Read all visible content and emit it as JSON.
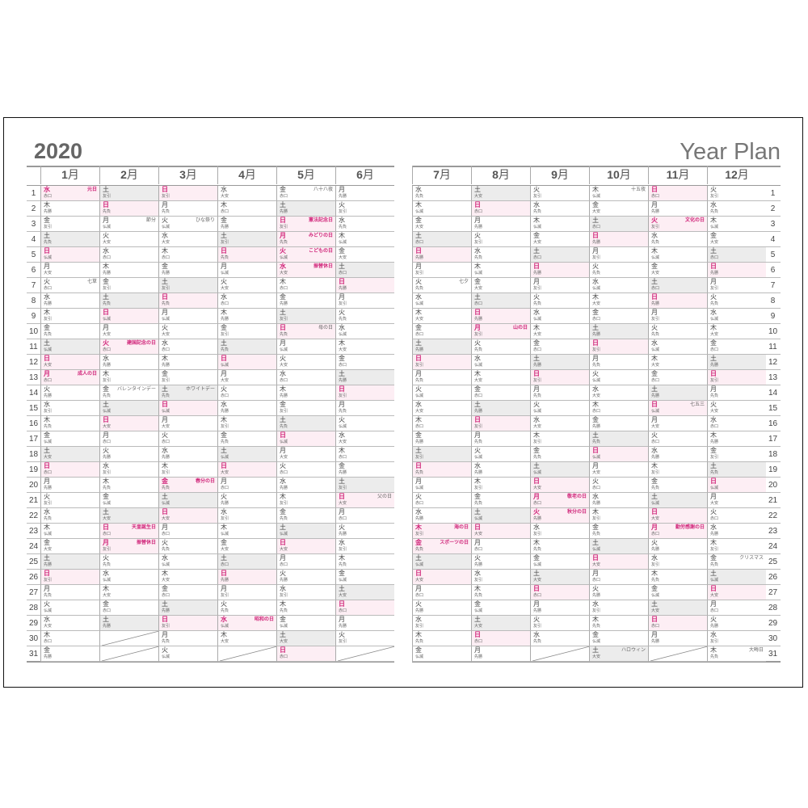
{
  "title": {
    "year": "2020",
    "plan": "Year Plan"
  },
  "colors": {
    "holiday": "#d0267a",
    "holiday_bg": "#fdeef4",
    "saturday_bg": "#ececec"
  },
  "month_suffix": "月",
  "months": [
    {
      "num": "1",
      "weekdays": [
        "水",
        "木",
        "金",
        "土",
        "日",
        "月",
        "火",
        "水",
        "木",
        "金",
        "土",
        "日",
        "月",
        "火",
        "水",
        "木",
        "金",
        "土",
        "日",
        "月",
        "火",
        "水",
        "木",
        "金",
        "土",
        "日",
        "月",
        "火",
        "水",
        "木",
        "金"
      ],
      "rokuyo": [
        "赤口",
        "先勝",
        "友引",
        "先負",
        "仏滅",
        "大安",
        "赤口",
        "先勝",
        "友引",
        "先負",
        "仏滅",
        "大安",
        "赤口",
        "先勝",
        "友引",
        "先負",
        "仏滅",
        "大安",
        "赤口",
        "先勝",
        "友引",
        "先負",
        "仏滅",
        "大安",
        "先勝",
        "友引",
        "先負",
        "仏滅",
        "大安",
        "赤口",
        "先勝"
      ],
      "events": {
        "1": {
          "text": "元日",
          "holiday": true
        },
        "7": {
          "text": "七草",
          "holiday": false
        },
        "13": {
          "text": "成人の日",
          "holiday": true
        }
      }
    },
    {
      "num": "2",
      "weekdays": [
        "土",
        "日",
        "月",
        "火",
        "水",
        "木",
        "金",
        "土",
        "日",
        "月",
        "火",
        "水",
        "木",
        "金",
        "土",
        "日",
        "月",
        "火",
        "水",
        "木",
        "金",
        "土",
        "日",
        "月",
        "火",
        "水",
        "木",
        "金",
        "土"
      ],
      "rokuyo": [
        "友引",
        "先負",
        "仏滅",
        "大安",
        "赤口",
        "先勝",
        "友引",
        "先負",
        "仏滅",
        "大安",
        "赤口",
        "先勝",
        "友引",
        "先負",
        "仏滅",
        "大安",
        "赤口",
        "先勝",
        "友引",
        "先負",
        "仏滅",
        "大安",
        "赤口",
        "友引",
        "先負",
        "仏滅",
        "大安",
        "赤口",
        "先勝"
      ],
      "events": {
        "3": {
          "text": "節分",
          "holiday": false
        },
        "11": {
          "text": "建国記念の日",
          "holiday": true
        },
        "14": {
          "text": "バレンタインデー",
          "holiday": false
        },
        "23": {
          "text": "天皇誕生日",
          "holiday": true
        },
        "24": {
          "text": "振替休日",
          "holiday": true
        }
      }
    },
    {
      "num": "3",
      "weekdays": [
        "日",
        "月",
        "火",
        "水",
        "木",
        "金",
        "土",
        "日",
        "月",
        "火",
        "水",
        "木",
        "金",
        "土",
        "日",
        "月",
        "火",
        "水",
        "木",
        "金",
        "土",
        "日",
        "月",
        "火",
        "水",
        "木",
        "金",
        "土",
        "日",
        "月",
        "火"
      ],
      "rokuyo": [
        "友引",
        "先負",
        "仏滅",
        "大安",
        "赤口",
        "先勝",
        "友引",
        "先負",
        "仏滅",
        "大安",
        "赤口",
        "先勝",
        "友引",
        "先負",
        "仏滅",
        "大安",
        "赤口",
        "先勝",
        "友引",
        "先負",
        "仏滅",
        "大安",
        "赤口",
        "先負",
        "仏滅",
        "大安",
        "赤口",
        "先勝",
        "友引",
        "先負",
        "仏滅"
      ],
      "events": {
        "3": {
          "text": "ひな祭り",
          "holiday": false
        },
        "14": {
          "text": "ホワイトデー",
          "holiday": false
        },
        "20": {
          "text": "春分の日",
          "holiday": true
        }
      }
    },
    {
      "num": "4",
      "weekdays": [
        "水",
        "木",
        "金",
        "土",
        "日",
        "月",
        "火",
        "水",
        "木",
        "金",
        "土",
        "日",
        "月",
        "火",
        "水",
        "木",
        "金",
        "土",
        "日",
        "月",
        "火",
        "水",
        "木",
        "金",
        "土",
        "日",
        "月",
        "火",
        "水",
        "木"
      ],
      "rokuyo": [
        "大安",
        "赤口",
        "先勝",
        "友引",
        "先負",
        "仏滅",
        "大安",
        "赤口",
        "先勝",
        "友引",
        "先負",
        "仏滅",
        "大安",
        "赤口",
        "先勝",
        "友引",
        "先負",
        "仏滅",
        "大安",
        "赤口",
        "先勝",
        "友引",
        "仏滅",
        "大安",
        "赤口",
        "先勝",
        "友引",
        "先負",
        "仏滅",
        "大安"
      ],
      "events": {
        "29": {
          "text": "昭和の日",
          "holiday": true
        }
      }
    },
    {
      "num": "5",
      "weekdays": [
        "金",
        "土",
        "日",
        "月",
        "火",
        "水",
        "木",
        "金",
        "土",
        "日",
        "月",
        "火",
        "水",
        "木",
        "金",
        "土",
        "日",
        "月",
        "火",
        "水",
        "木",
        "金",
        "土",
        "日",
        "月",
        "火",
        "水",
        "木",
        "金",
        "土",
        "日"
      ],
      "rokuyo": [
        "赤口",
        "先勝",
        "友引",
        "先負",
        "仏滅",
        "大安",
        "赤口",
        "先勝",
        "友引",
        "先負",
        "仏滅",
        "大安",
        "赤口",
        "先勝",
        "友引",
        "先負",
        "仏滅",
        "大安",
        "赤口",
        "先勝",
        "友引",
        "先負",
        "仏滅",
        "大安",
        "赤口",
        "先勝",
        "友引",
        "先負",
        "仏滅",
        "大安",
        "赤口"
      ],
      "events": {
        "1": {
          "text": "八十八夜",
          "holiday": false
        },
        "3": {
          "text": "憲法記念日",
          "holiday": true
        },
        "4": {
          "text": "みどりの日",
          "holiday": true
        },
        "5": {
          "text": "こどもの日",
          "holiday": true
        },
        "6": {
          "text": "振替休日",
          "holiday": true
        },
        "10": {
          "text": "母の日",
          "holiday": false
        }
      }
    },
    {
      "num": "6",
      "weekdays": [
        "月",
        "火",
        "水",
        "木",
        "金",
        "土",
        "日",
        "月",
        "火",
        "水",
        "木",
        "金",
        "土",
        "日",
        "月",
        "火",
        "水",
        "木",
        "金",
        "土",
        "日",
        "月",
        "火",
        "水",
        "木",
        "金",
        "土",
        "日",
        "月",
        "火"
      ],
      "rokuyo": [
        "先勝",
        "友引",
        "先負",
        "仏滅",
        "大安",
        "赤口",
        "先勝",
        "友引",
        "先負",
        "仏滅",
        "大安",
        "赤口",
        "先勝",
        "友引",
        "先負",
        "仏滅",
        "大安",
        "赤口",
        "先勝",
        "友引",
        "大安",
        "赤口",
        "先勝",
        "友引",
        "先負",
        "仏滅",
        "大安",
        "赤口",
        "先勝",
        "友引"
      ],
      "events": {
        "21": {
          "text": "父の日",
          "holiday": false
        }
      }
    },
    {
      "num": "7",
      "weekdays": [
        "水",
        "木",
        "金",
        "土",
        "日",
        "月",
        "火",
        "水",
        "木",
        "金",
        "土",
        "日",
        "月",
        "火",
        "水",
        "木",
        "金",
        "土",
        "日",
        "月",
        "火",
        "水",
        "木",
        "金",
        "土",
        "日",
        "月",
        "火",
        "水",
        "木",
        "金"
      ],
      "rokuyo": [
        "先負",
        "仏滅",
        "大安",
        "赤口",
        "先勝",
        "友引",
        "先負",
        "仏滅",
        "大安",
        "赤口",
        "先勝",
        "友引",
        "先負",
        "仏滅",
        "大安",
        "赤口",
        "先勝",
        "友引",
        "先負",
        "仏滅",
        "赤口",
        "先勝",
        "友引",
        "先負",
        "仏滅",
        "大安",
        "赤口",
        "先勝",
        "友引",
        "先負",
        "仏滅"
      ],
      "events": {
        "7": {
          "text": "七夕",
          "holiday": false
        },
        "23": {
          "text": "海の日",
          "holiday": true
        },
        "24": {
          "text": "スポーツの日",
          "holiday": true
        }
      }
    },
    {
      "num": "8",
      "weekdays": [
        "土",
        "日",
        "月",
        "火",
        "水",
        "木",
        "金",
        "土",
        "日",
        "月",
        "火",
        "水",
        "木",
        "金",
        "土",
        "日",
        "月",
        "火",
        "水",
        "木",
        "金",
        "土",
        "日",
        "月",
        "火",
        "水",
        "木",
        "金",
        "土",
        "日",
        "月"
      ],
      "rokuyo": [
        "大安",
        "赤口",
        "先勝",
        "友引",
        "先負",
        "仏滅",
        "大安",
        "赤口",
        "先勝",
        "友引",
        "先負",
        "仏滅",
        "大安",
        "赤口",
        "先勝",
        "友引",
        "先負",
        "仏滅",
        "先勝",
        "友引",
        "先負",
        "仏滅",
        "大安",
        "赤口",
        "先勝",
        "友引",
        "先負",
        "仏滅",
        "大安",
        "赤口",
        "先勝"
      ],
      "events": {
        "10": {
          "text": "山の日",
          "holiday": true
        }
      }
    },
    {
      "num": "9",
      "weekdays": [
        "火",
        "水",
        "木",
        "金",
        "土",
        "日",
        "月",
        "火",
        "水",
        "木",
        "金",
        "土",
        "日",
        "月",
        "火",
        "水",
        "木",
        "金",
        "土",
        "日",
        "月",
        "火",
        "水",
        "木",
        "金",
        "土",
        "日",
        "月",
        "火",
        "水"
      ],
      "rokuyo": [
        "友引",
        "先負",
        "仏滅",
        "大安",
        "赤口",
        "先勝",
        "友引",
        "先負",
        "仏滅",
        "大安",
        "赤口",
        "先勝",
        "友引",
        "先負",
        "仏滅",
        "大安",
        "友引",
        "先負",
        "仏滅",
        "大安",
        "赤口",
        "先勝",
        "友引",
        "先負",
        "仏滅",
        "大安",
        "赤口",
        "先勝",
        "友引",
        "先負"
      ],
      "events": {
        "21": {
          "text": "敬老の日",
          "holiday": true
        },
        "22": {
          "text": "秋分の日",
          "holiday": true
        }
      }
    },
    {
      "num": "10",
      "weekdays": [
        "木",
        "金",
        "土",
        "日",
        "月",
        "火",
        "水",
        "木",
        "金",
        "土",
        "日",
        "月",
        "火",
        "水",
        "木",
        "金",
        "土",
        "日",
        "月",
        "火",
        "水",
        "木",
        "金",
        "土",
        "日",
        "月",
        "火",
        "水",
        "木",
        "金",
        "土"
      ],
      "rokuyo": [
        "仏滅",
        "大安",
        "赤口",
        "先勝",
        "友引",
        "先負",
        "仏滅",
        "大安",
        "赤口",
        "先勝",
        "友引",
        "先負",
        "仏滅",
        "大安",
        "赤口",
        "先勝",
        "先負",
        "仏滅",
        "大安",
        "赤口",
        "先勝",
        "友引",
        "先負",
        "仏滅",
        "大安",
        "赤口",
        "先勝",
        "友引",
        "先負",
        "仏滅",
        "大安"
      ],
      "events": {
        "1": {
          "text": "十五夜",
          "holiday": false
        },
        "31": {
          "text": "ハロウィン",
          "holiday": false
        }
      }
    },
    {
      "num": "11",
      "weekdays": [
        "日",
        "月",
        "火",
        "水",
        "木",
        "金",
        "土",
        "日",
        "月",
        "火",
        "水",
        "木",
        "金",
        "土",
        "日",
        "月",
        "火",
        "水",
        "木",
        "金",
        "土",
        "日",
        "月",
        "火",
        "水",
        "木",
        "金",
        "土",
        "日",
        "月"
      ],
      "rokuyo": [
        "赤口",
        "先勝",
        "友引",
        "先負",
        "仏滅",
        "大安",
        "赤口",
        "先勝",
        "友引",
        "先負",
        "仏滅",
        "大安",
        "赤口",
        "先勝",
        "仏滅",
        "大安",
        "赤口",
        "先勝",
        "友引",
        "先負",
        "仏滅",
        "大安",
        "赤口",
        "先勝",
        "友引",
        "先負",
        "仏滅",
        "大安",
        "赤口",
        "先勝"
      ],
      "events": {
        "3": {
          "text": "文化の日",
          "holiday": true
        },
        "15": {
          "text": "七五三",
          "holiday": false
        },
        "23": {
          "text": "勤労感謝の日",
          "holiday": true
        }
      }
    },
    {
      "num": "12",
      "weekdays": [
        "火",
        "水",
        "木",
        "金",
        "土",
        "日",
        "月",
        "火",
        "水",
        "木",
        "金",
        "土",
        "日",
        "月",
        "火",
        "水",
        "木",
        "金",
        "土",
        "日",
        "月",
        "火",
        "水",
        "木",
        "金",
        "土",
        "日",
        "月",
        "火",
        "水",
        "木"
      ],
      "rokuyo": [
        "友引",
        "先負",
        "仏滅",
        "大安",
        "赤口",
        "先勝",
        "友引",
        "先負",
        "仏滅",
        "大安",
        "赤口",
        "先勝",
        "友引",
        "先負",
        "大安",
        "赤口",
        "先勝",
        "友引",
        "先負",
        "仏滅",
        "大安",
        "赤口",
        "先勝",
        "友引",
        "先負",
        "仏滅",
        "大安",
        "赤口",
        "先勝",
        "友引",
        "先負"
      ],
      "events": {
        "25": {
          "text": "クリスマス",
          "holiday": false
        },
        "31": {
          "text": "大晦日",
          "holiday": false
        }
      }
    }
  ]
}
